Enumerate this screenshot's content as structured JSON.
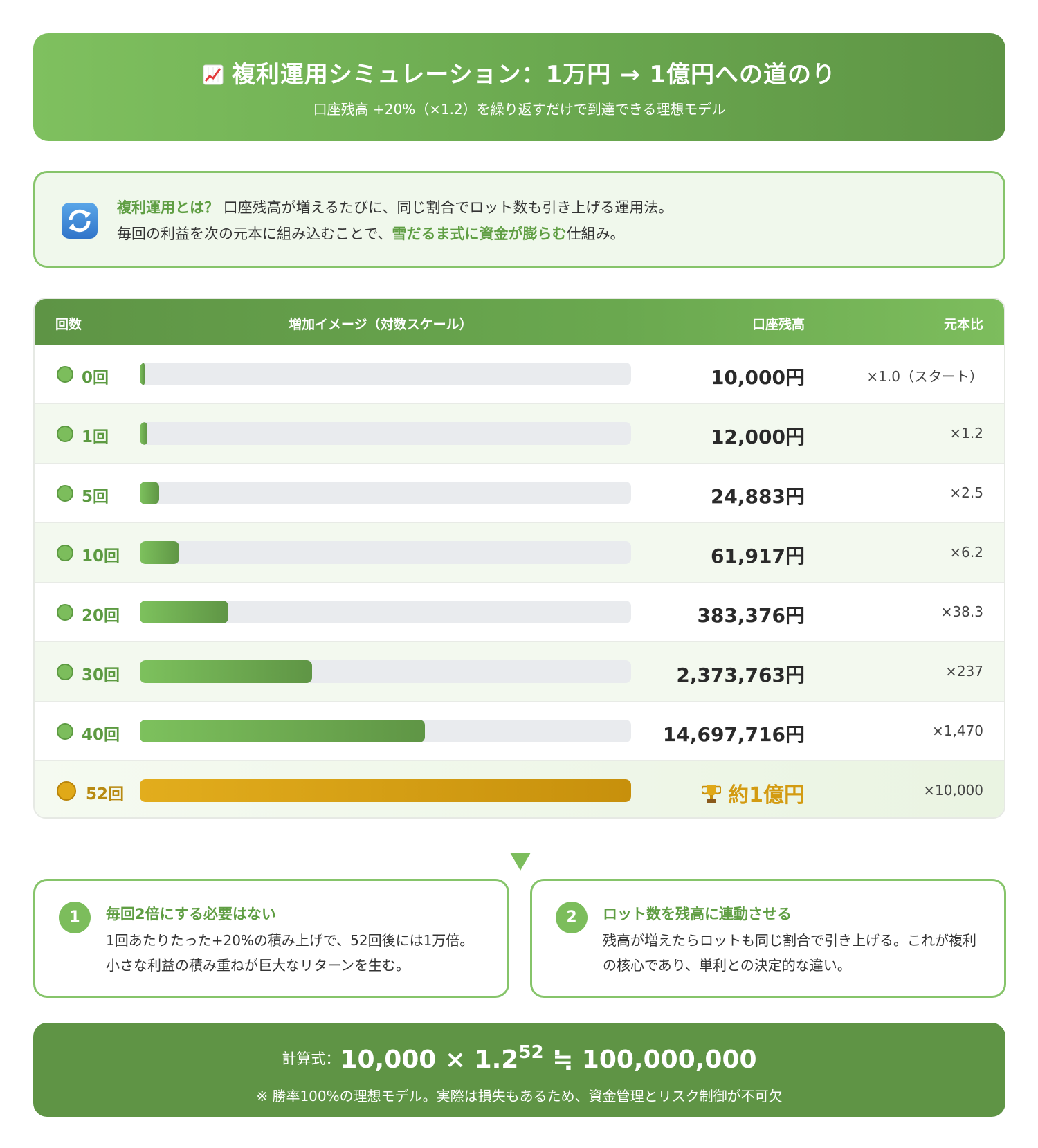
{
  "header": {
    "emoji": "chart-increasing-icon",
    "title": "複利運用シミュレーション：1万円 → 1億円への道のり",
    "subtitle": "口座残高 +20%（×1.2）を繰り返すだけで到達できる理想モデル"
  },
  "info": {
    "icon": "refresh-icon",
    "line1_highlight": "複利運用とは？",
    "line1_rest": " 口座残高が増えるたびに、同じ割合でロット数も引き上げる運用法。",
    "line2_pre": "毎回の利益を次の元本に組み込むことで、",
    "line2_highlight": "雪だるま式に資金が膨らむ",
    "line2_post": "仕組み。"
  },
  "chart_data": {
    "type": "bar",
    "title": "",
    "scale": "log",
    "columns": [
      "回数",
      "増加イメージ（対数スケール）",
      "口座残高",
      "元本比"
    ],
    "rows": [
      {
        "count": "0回",
        "fraction": 0.01,
        "balance": "10,000円",
        "ratio": "×1.0（スタート）"
      },
      {
        "count": "1回",
        "fraction": 0.015,
        "balance": "12,000円",
        "ratio": "×1.2"
      },
      {
        "count": "5回",
        "fraction": 0.04,
        "balance": "24,883円",
        "ratio": "×2.5"
      },
      {
        "count": "10回",
        "fraction": 0.08,
        "balance": "61,917円",
        "ratio": "×6.2"
      },
      {
        "count": "20回",
        "fraction": 0.18,
        "balance": "383,376円",
        "ratio": "×38.3"
      },
      {
        "count": "30回",
        "fraction": 0.35,
        "balance": "2,373,763円",
        "ratio": "×237"
      },
      {
        "count": "40回",
        "fraction": 0.58,
        "balance": "14,697,716円",
        "ratio": "×1,470"
      },
      {
        "count": "52回",
        "fraction": 1.0,
        "balance": "約1億円",
        "ratio": "×10,000",
        "final": true
      }
    ],
    "colors": {
      "bar": "#6aa84f",
      "final_bar": "#d39b12",
      "track": "#e9ebee"
    }
  },
  "cards": [
    {
      "num": "1",
      "title": "毎回2倍にする必要はない",
      "body": "1回あたりたった+20%の積み上げで、52回後には1万倍。小さな利益の積み重ねが巨大なリターンを生む。"
    },
    {
      "num": "2",
      "title": "ロット数を残高に連動させる",
      "body": "残高が増えたらロットも同じ割合で引き上げる。これが複利の核心であり、単利との決定的な違い。"
    }
  ],
  "formula": {
    "label": "計算式：",
    "base": "10,000 × 1.2",
    "exponent": "52",
    "result": " ≒ 100,000,000",
    "note": "※ 勝率100%の理想モデル。実際は損失もあるため、資金管理とリスク制御が不可欠"
  }
}
